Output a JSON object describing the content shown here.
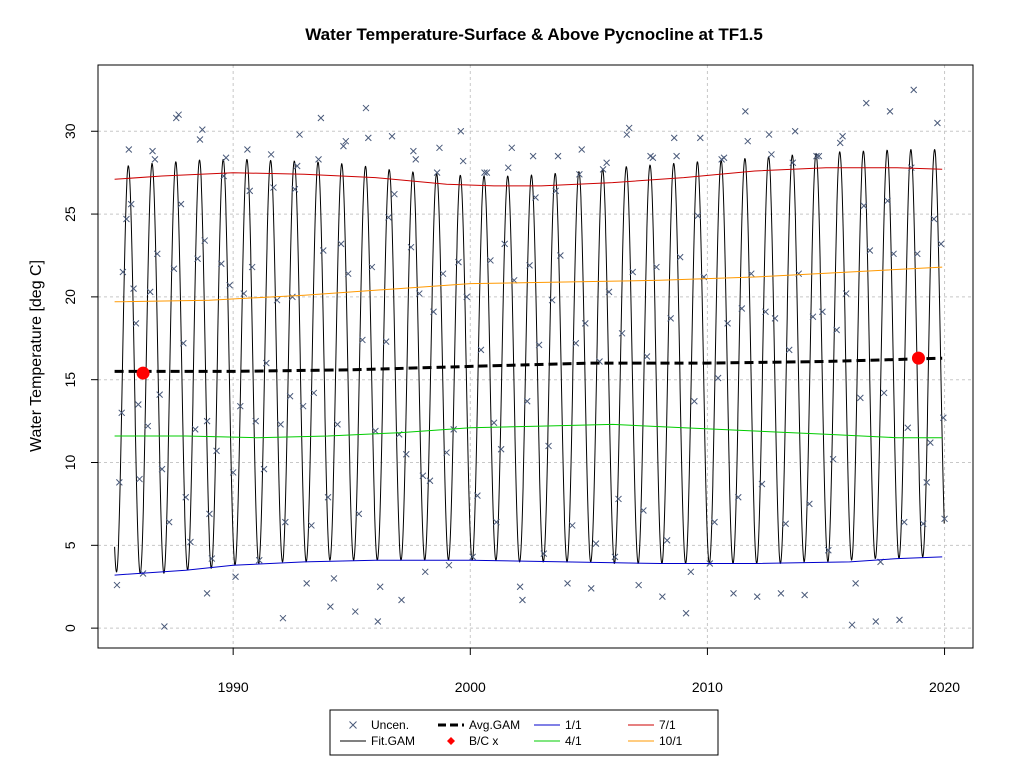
{
  "chart_data": {
    "type": "line",
    "title": "Water Temperature-Surface & Above Pycnocline at TF1.5",
    "xlabel": "",
    "ylabel": "Water Temperature [deg C]",
    "xlim": [
      1984.3,
      2021.2
    ],
    "ylim": [
      -1.2,
      34.0
    ],
    "x_ticks": [
      1990,
      2000,
      2010,
      2020
    ],
    "y_ticks": [
      0,
      5,
      10,
      15,
      20,
      25,
      30
    ],
    "grid": true,
    "legend_position": "bottom",
    "legend": [
      {
        "label": "Uncen.",
        "style": "x-marker",
        "color": "#4a5a7a"
      },
      {
        "label": "Fit.GAM",
        "style": "line",
        "color": "#000000"
      },
      {
        "label": "Avg.GAM",
        "style": "thick-dashed",
        "color": "#000000"
      },
      {
        "label": "B/C x",
        "style": "red-diamond",
        "color": "#ff0000"
      },
      {
        "label": "1/1",
        "style": "line",
        "color": "#0000cc"
      },
      {
        "label": "4/1",
        "style": "line",
        "color": "#00cc00"
      },
      {
        "label": "7/1",
        "style": "line",
        "color": "#cc0000"
      },
      {
        "label": "10/1",
        "style": "line",
        "color": "#ff9900"
      }
    ],
    "series": [
      {
        "name": "1/1",
        "color": "#0000cc",
        "x": [
          1985.0,
          1988.0,
          1990.0,
          1993.0,
          1996.0,
          2000.0,
          2004.0,
          2008.0,
          2012.0,
          2016.0,
          2018.0,
          2019.9
        ],
        "y": [
          3.2,
          3.5,
          3.8,
          4.0,
          4.1,
          4.1,
          4.0,
          3.9,
          3.9,
          4.0,
          4.2,
          4.3
        ]
      },
      {
        "name": "4/1",
        "color": "#00cc00",
        "x": [
          1985.0,
          1988.0,
          1991.0,
          1994.0,
          1997.0,
          2000.0,
          2003.0,
          2006.0,
          2009.0,
          2012.0,
          2015.0,
          2018.0,
          2019.9
        ],
        "y": [
          11.6,
          11.6,
          11.5,
          11.6,
          11.8,
          12.1,
          12.2,
          12.3,
          12.1,
          11.9,
          11.7,
          11.5,
          11.5
        ]
      },
      {
        "name": "7/1",
        "color": "#cc0000",
        "x": [
          1985.0,
          1987.0,
          1990.0,
          1993.0,
          1996.0,
          1999.0,
          2001.0,
          2003.0,
          2006.0,
          2009.0,
          2012.0,
          2015.0,
          2018.0,
          2019.9
        ],
        "y": [
          27.1,
          27.3,
          27.5,
          27.4,
          27.2,
          26.8,
          26.7,
          26.7,
          26.9,
          27.2,
          27.6,
          27.8,
          27.8,
          27.7
        ]
      },
      {
        "name": "10/1",
        "color": "#ff9900",
        "x": [
          1985.0,
          1989.0,
          1993.0,
          1997.0,
          2000.0,
          2004.0,
          2008.0,
          2012.0,
          2016.0,
          2019.9
        ],
        "y": [
          19.7,
          19.8,
          20.1,
          20.5,
          20.8,
          20.9,
          21.0,
          21.2,
          21.5,
          21.8
        ]
      },
      {
        "name": "Avg.GAM",
        "color": "#000000",
        "x": [
          1985.0,
          1990.0,
          1995.0,
          2000.0,
          2005.0,
          2010.0,
          2015.0,
          2019.9
        ],
        "y": [
          15.5,
          15.5,
          15.6,
          15.8,
          16.0,
          16.0,
          16.1,
          16.3
        ]
      }
    ],
    "fit_gam": {
      "description_free": true,
      "years_start": 1985,
      "years_end": 2019,
      "winter_low": [
        3.4,
        3.3,
        3.3,
        3.5,
        3.6,
        3.8,
        3.9,
        4.0,
        4.0,
        4.1,
        4.1,
        4.1,
        4.1,
        4.1,
        4.1,
        4.1,
        4.1,
        4.0,
        4.0,
        4.0,
        4.0,
        3.9,
        3.9,
        3.9,
        3.9,
        3.9,
        3.9,
        3.9,
        3.9,
        4.0,
        4.0,
        4.1,
        4.2,
        4.2,
        4.3
      ],
      "summer_high": [
        27.8,
        28.0,
        28.1,
        28.2,
        28.3,
        28.3,
        28.3,
        28.2,
        28.2,
        28.1,
        28.0,
        27.8,
        27.6,
        27.5,
        27.4,
        27.3,
        27.3,
        27.3,
        27.4,
        27.5,
        27.6,
        27.8,
        27.9,
        28.0,
        28.1,
        28.2,
        28.3,
        28.4,
        28.5,
        28.6,
        28.7,
        28.8,
        28.8,
        28.9,
        28.9
      ]
    },
    "bc_points": [
      {
        "x": 1986.2,
        "y": 15.4
      },
      {
        "x": 2018.9,
        "y": 16.3
      }
    ],
    "observations": [
      [
        1985.1,
        2.6
      ],
      [
        1985.2,
        8.8
      ],
      [
        1985.3,
        13.0
      ],
      [
        1985.35,
        21.5
      ],
      [
        1985.5,
        24.7
      ],
      [
        1985.6,
        28.9
      ],
      [
        1985.7,
        25.6
      ],
      [
        1985.8,
        20.5
      ],
      [
        1985.9,
        18.4
      ],
      [
        1986.0,
        13.5
      ],
      [
        1986.05,
        9.0
      ],
      [
        1986.2,
        3.3
      ],
      [
        1986.4,
        12.2
      ],
      [
        1986.5,
        20.3
      ],
      [
        1986.6,
        28.8
      ],
      [
        1986.7,
        28.3
      ],
      [
        1986.8,
        22.6
      ],
      [
        1986.9,
        14.1
      ],
      [
        1987.0,
        9.6
      ],
      [
        1987.1,
        0.1
      ],
      [
        1987.3,
        6.4
      ],
      [
        1987.5,
        21.7
      ],
      [
        1987.6,
        30.8
      ],
      [
        1987.7,
        31.0
      ],
      [
        1987.8,
        25.6
      ],
      [
        1987.9,
        17.2
      ],
      [
        1988.0,
        7.9
      ],
      [
        1988.2,
        5.2
      ],
      [
        1988.4,
        12.0
      ],
      [
        1988.5,
        22.3
      ],
      [
        1988.6,
        29.5
      ],
      [
        1988.7,
        30.1
      ],
      [
        1988.8,
        23.4
      ],
      [
        1988.9,
        12.5
      ],
      [
        1989.0,
        6.9
      ],
      [
        1988.9,
        2.1
      ],
      [
        1989.1,
        4.2
      ],
      [
        1989.3,
        10.7
      ],
      [
        1989.5,
        22.0
      ],
      [
        1989.6,
        27.3
      ],
      [
        1989.7,
        28.4
      ],
      [
        1989.85,
        20.7
      ],
      [
        1990.0,
        9.4
      ],
      [
        1990.1,
        3.1
      ],
      [
        1990.3,
        13.4
      ],
      [
        1990.45,
        20.2
      ],
      [
        1990.6,
        28.9
      ],
      [
        1990.7,
        26.4
      ],
      [
        1990.8,
        21.8
      ],
      [
        1990.95,
        12.5
      ],
      [
        1991.1,
        4.1
      ],
      [
        1991.3,
        9.6
      ],
      [
        1991.4,
        16.0
      ],
      [
        1991.6,
        28.6
      ],
      [
        1991.7,
        26.6
      ],
      [
        1991.85,
        19.8
      ],
      [
        1992.0,
        12.3
      ],
      [
        1992.1,
        0.6
      ],
      [
        1992.2,
        6.4
      ],
      [
        1992.4,
        14.0
      ],
      [
        1992.5,
        20.0
      ],
      [
        1992.6,
        26.5
      ],
      [
        1992.7,
        27.9
      ],
      [
        1992.8,
        29.8
      ],
      [
        1992.95,
        13.4
      ],
      [
        1993.1,
        2.7
      ],
      [
        1993.3,
        6.2
      ],
      [
        1993.4,
        14.2
      ],
      [
        1993.6,
        28.3
      ],
      [
        1993.7,
        30.8
      ],
      [
        1993.8,
        22.8
      ],
      [
        1994.0,
        7.9
      ],
      [
        1994.1,
        1.3
      ],
      [
        1994.25,
        3.0
      ],
      [
        1994.4,
        12.3
      ],
      [
        1994.55,
        23.2
      ],
      [
        1994.65,
        29.1
      ],
      [
        1994.75,
        29.4
      ],
      [
        1994.85,
        21.4
      ],
      [
        1995.15,
        1.0
      ],
      [
        1995.3,
        6.9
      ],
      [
        1995.45,
        17.4
      ],
      [
        1995.6,
        31.4
      ],
      [
        1995.7,
        29.6
      ],
      [
        1995.85,
        21.8
      ],
      [
        1996.0,
        11.9
      ],
      [
        1996.1,
        0.4
      ],
      [
        1996.2,
        2.5
      ],
      [
        1996.45,
        17.3
      ],
      [
        1996.55,
        24.8
      ],
      [
        1996.7,
        29.7
      ],
      [
        1996.8,
        26.2
      ],
      [
        1997.0,
        11.7
      ],
      [
        1997.1,
        1.7
      ],
      [
        1997.3,
        10.5
      ],
      [
        1997.5,
        23.0
      ],
      [
        1997.6,
        28.8
      ],
      [
        1997.7,
        28.3
      ],
      [
        1997.85,
        20.2
      ],
      [
        1998.0,
        9.2
      ],
      [
        1998.1,
        3.4
      ],
      [
        1998.3,
        8.9
      ],
      [
        1998.45,
        19.1
      ],
      [
        1998.6,
        27.5
      ],
      [
        1998.7,
        29.0
      ],
      [
        1998.85,
        21.4
      ],
      [
        1999.0,
        10.6
      ],
      [
        1999.1,
        3.8
      ],
      [
        1999.3,
        12.0
      ],
      [
        1999.5,
        22.1
      ],
      [
        1999.6,
        30.0
      ],
      [
        1999.7,
        28.2
      ],
      [
        1999.85,
        20.0
      ],
      [
        2000.1,
        4.3
      ],
      [
        2000.3,
        8.0
      ],
      [
        2000.45,
        16.8
      ],
      [
        2000.6,
        27.5
      ],
      [
        2000.7,
        27.5
      ],
      [
        2000.85,
        22.2
      ],
      [
        2001.0,
        12.4
      ],
      [
        2001.1,
        6.4
      ],
      [
        2001.3,
        10.8
      ],
      [
        2001.45,
        23.2
      ],
      [
        2001.6,
        27.8
      ],
      [
        2001.75,
        29.0
      ],
      [
        2001.85,
        21.0
      ],
      [
        2002.1,
        2.5
      ],
      [
        2002.2,
        1.7
      ],
      [
        2002.4,
        13.7
      ],
      [
        2002.5,
        21.9
      ],
      [
        2002.65,
        28.5
      ],
      [
        2002.75,
        26.0
      ],
      [
        2002.9,
        17.1
      ],
      [
        2003.1,
        4.5
      ],
      [
        2003.3,
        11.0
      ],
      [
        2003.45,
        19.8
      ],
      [
        2003.6,
        26.4
      ],
      [
        2003.7,
        28.5
      ],
      [
        2003.8,
        22.5
      ],
      [
        2004.1,
        2.7
      ],
      [
        2004.3,
        6.2
      ],
      [
        2004.45,
        17.2
      ],
      [
        2004.6,
        27.4
      ],
      [
        2004.7,
        28.9
      ],
      [
        2004.85,
        18.4
      ],
      [
        2005.1,
        2.4
      ],
      [
        2005.3,
        5.1
      ],
      [
        2005.45,
        16.1
      ],
      [
        2005.6,
        27.7
      ],
      [
        2005.75,
        28.1
      ],
      [
        2005.85,
        20.3
      ],
      [
        2006.1,
        4.3
      ],
      [
        2006.25,
        7.8
      ],
      [
        2006.4,
        17.8
      ],
      [
        2006.6,
        29.8
      ],
      [
        2006.7,
        30.2
      ],
      [
        2006.85,
        21.5
      ],
      [
        2007.1,
        2.6
      ],
      [
        2007.3,
        7.1
      ],
      [
        2007.45,
        16.4
      ],
      [
        2007.6,
        28.5
      ],
      [
        2007.7,
        28.4
      ],
      [
        2007.85,
        21.8
      ],
      [
        2008.1,
        1.9
      ],
      [
        2008.3,
        5.3
      ],
      [
        2008.45,
        18.7
      ],
      [
        2008.6,
        29.6
      ],
      [
        2008.7,
        28.5
      ],
      [
        2008.85,
        22.4
      ],
      [
        2009.1,
        0.9
      ],
      [
        2009.3,
        3.4
      ],
      [
        2009.45,
        13.7
      ],
      [
        2009.6,
        24.9
      ],
      [
        2009.7,
        29.6
      ],
      [
        2009.85,
        21.2
      ],
      [
        2010.1,
        3.9
      ],
      [
        2010.3,
        6.4
      ],
      [
        2010.45,
        15.1
      ],
      [
        2010.6,
        28.3
      ],
      [
        2010.7,
        28.4
      ],
      [
        2010.85,
        18.4
      ],
      [
        2011.1,
        2.1
      ],
      [
        2011.3,
        7.9
      ],
      [
        2011.45,
        19.3
      ],
      [
        2011.6,
        31.2
      ],
      [
        2011.7,
        29.4
      ],
      [
        2011.85,
        21.4
      ],
      [
        2012.1,
        1.9
      ],
      [
        2012.3,
        8.7
      ],
      [
        2012.45,
        19.1
      ],
      [
        2012.6,
        29.8
      ],
      [
        2012.7,
        28.6
      ],
      [
        2012.85,
        18.7
      ],
      [
        2013.1,
        2.1
      ],
      [
        2013.3,
        6.3
      ],
      [
        2013.45,
        16.8
      ],
      [
        2013.6,
        28.1
      ],
      [
        2013.7,
        30.0
      ],
      [
        2013.85,
        21.4
      ],
      [
        2014.1,
        2.0
      ],
      [
        2014.3,
        7.5
      ],
      [
        2014.45,
        18.8
      ],
      [
        2014.6,
        28.5
      ],
      [
        2014.7,
        28.5
      ],
      [
        2014.85,
        19.1
      ],
      [
        2015.1,
        4.7
      ],
      [
        2015.3,
        10.2
      ],
      [
        2015.45,
        18.0
      ],
      [
        2015.6,
        29.3
      ],
      [
        2015.7,
        29.7
      ],
      [
        2015.85,
        20.2
      ],
      [
        2016.1,
        0.2
      ],
      [
        2016.25,
        2.7
      ],
      [
        2016.45,
        13.9
      ],
      [
        2016.6,
        25.5
      ],
      [
        2016.7,
        31.7
      ],
      [
        2016.85,
        22.8
      ],
      [
        2017.1,
        0.4
      ],
      [
        2017.3,
        4.0
      ],
      [
        2017.45,
        14.2
      ],
      [
        2017.6,
        25.8
      ],
      [
        2017.7,
        31.2
      ],
      [
        2017.85,
        22.6
      ],
      [
        2018.1,
        0.5
      ],
      [
        2018.3,
        6.4
      ],
      [
        2018.45,
        12.1
      ],
      [
        2018.6,
        27.8
      ],
      [
        2018.7,
        32.5
      ],
      [
        2018.85,
        22.6
      ],
      [
        2019.1,
        6.3
      ],
      [
        2019.25,
        8.8
      ],
      [
        2019.4,
        11.2
      ],
      [
        2019.55,
        24.7
      ],
      [
        2019.7,
        30.5
      ],
      [
        2019.85,
        23.2
      ],
      [
        2019.95,
        12.7
      ],
      [
        2020.0,
        6.6
      ]
    ]
  }
}
